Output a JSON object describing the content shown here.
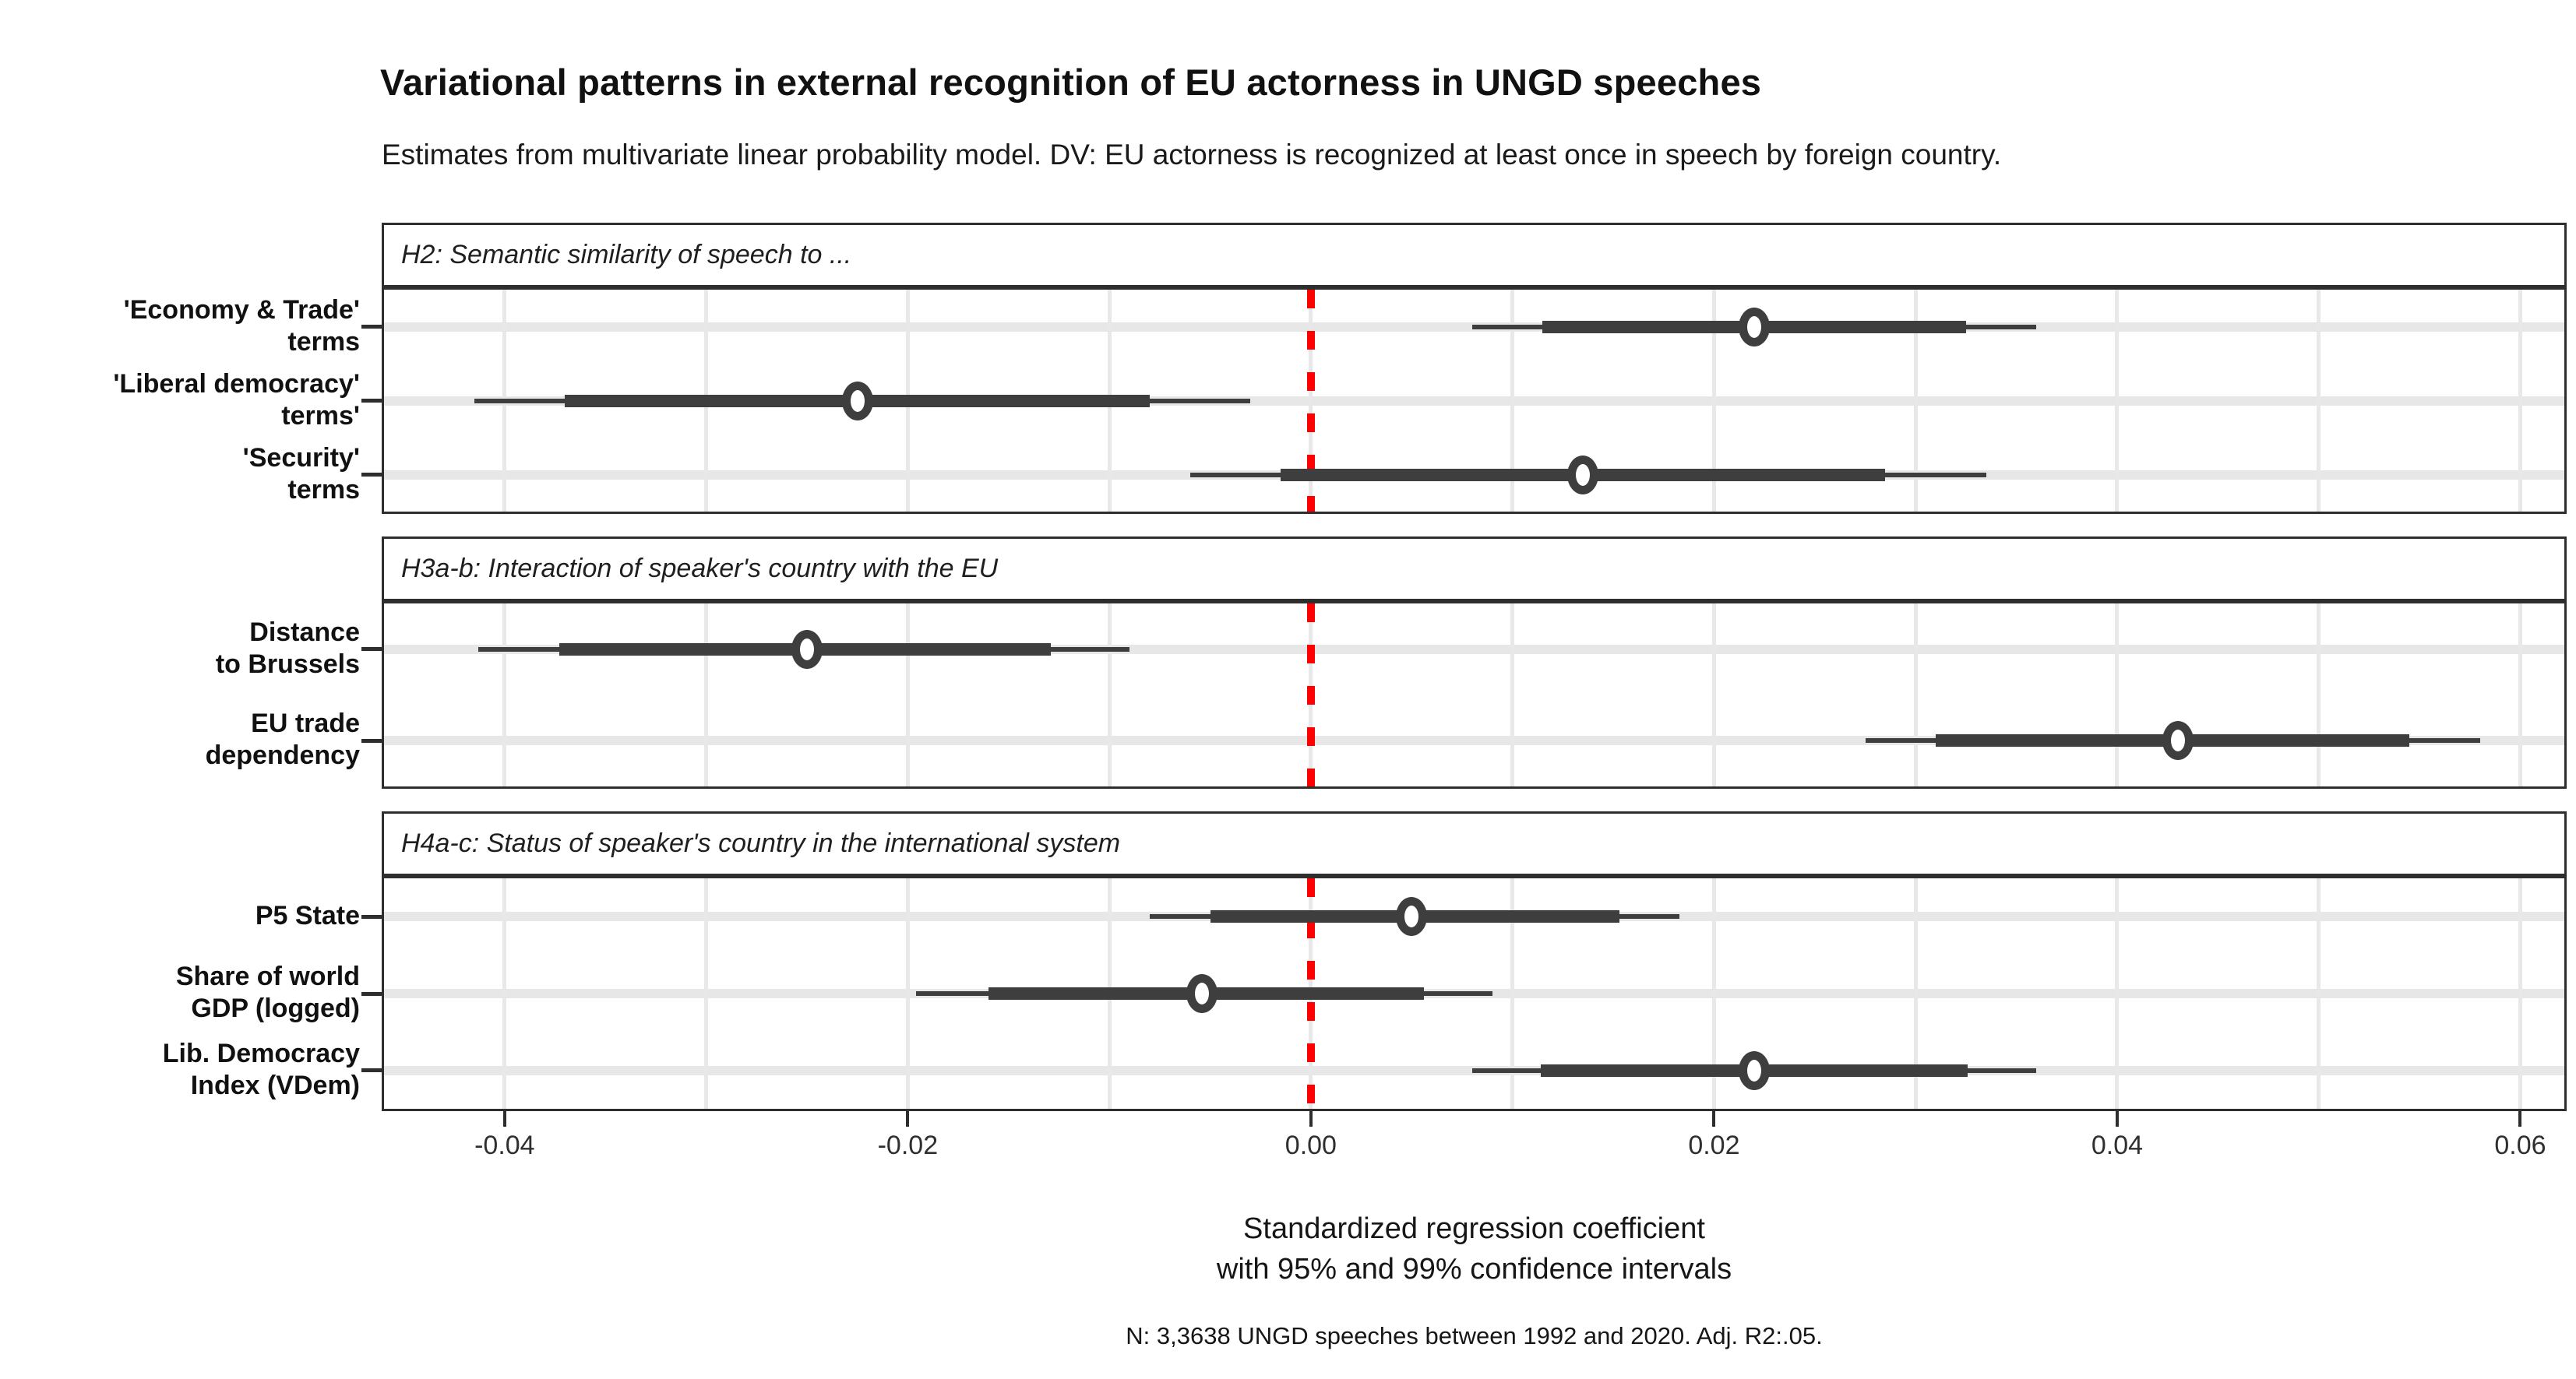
{
  "header": {
    "title": "Variational patterns in external recognition of EU actorness in UNGD speeches",
    "subtitle": "Estimates from multivariate linear probability model. DV: EU actorness is recognized at least once in speech by foreign country."
  },
  "axis": {
    "xlabel": "Standardized regression coefficient\nwith 95% and 99% confidence intervals"
  },
  "caption": "N: 3,3638 UNGD speeches between 1992 and 2020. Adj. R2:.05.",
  "colors": {
    "estimate": "#3e3e3e",
    "zero_line": "#ff0000",
    "gridline": "#e8e8e8",
    "row_band": "#e7e7e7",
    "panel_border": "#2e2e2e",
    "background": "#ffffff"
  },
  "chart_data": {
    "type": "scatter",
    "subtype": "coefficient-dot-whisker-plot",
    "title": "Variational patterns in external recognition of EU actorness in UNGD speeches",
    "xlabel": "Standardized regression coefficient with 95% and 99% confidence intervals",
    "ylabel": "",
    "x_domain": [
      -0.0461,
      0.0623
    ],
    "x_ticks": [
      -0.04,
      -0.02,
      0.0,
      0.02,
      0.04,
      0.06
    ],
    "x_tick_labels": [
      "-0.04",
      "-0.02",
      "0.00",
      "0.02",
      "0.04",
      "0.06"
    ],
    "gridline_step": 0.01,
    "grid": true,
    "legend": false,
    "zero_reference_line": 0,
    "panels": [
      {
        "header": "H2: Semantic similarity of speech to ...",
        "rows": [
          {
            "label_lines": [
              "'Economy & Trade'",
              "terms"
            ],
            "estimate": 0.022,
            "ci95": [
              0.0115,
              0.0325
            ],
            "ci99": [
              0.008,
              0.036
            ]
          },
          {
            "label_lines": [
              "'Liberal democracy'",
              "terms'"
            ],
            "estimate": -0.0225,
            "ci95": [
              -0.037,
              -0.008
            ],
            "ci99": [
              -0.0415,
              -0.003
            ]
          },
          {
            "label_lines": [
              "'Security'",
              "terms"
            ],
            "estimate": 0.0135,
            "ci95": [
              -0.0015,
              0.0285
            ],
            "ci99": [
              -0.006,
              0.0335
            ]
          }
        ]
      },
      {
        "header": "H3a-b: Interaction of speaker's country with the EU",
        "rows": [
          {
            "label_lines": [
              "Distance",
              "to Brussels"
            ],
            "estimate": -0.025,
            "ci95": [
              -0.0373,
              -0.0129
            ],
            "ci99": [
              -0.0413,
              -0.009
            ]
          },
          {
            "label_lines": [
              "EU trade",
              "dependency"
            ],
            "estimate": 0.043,
            "ci95": [
              0.031,
              0.0545
            ],
            "ci99": [
              0.0275,
              0.058
            ]
          }
        ]
      },
      {
        "header": "H4a-c: Status of speaker's country in the international system",
        "rows": [
          {
            "label_lines": [
              "P5 State"
            ],
            "estimate": 0.005,
            "ci95": [
              -0.005,
              0.0153
            ],
            "ci99": [
              -0.008,
              0.0183
            ]
          },
          {
            "label_lines": [
              "Share of world",
              "GDP (logged)"
            ],
            "estimate": -0.0054,
            "ci95": [
              -0.016,
              0.0056
            ],
            "ci99": [
              -0.0196,
              0.009
            ]
          },
          {
            "label_lines": [
              "Lib. Democracy",
              "Index (VDem)"
            ],
            "estimate": 0.022,
            "ci95": [
              0.0114,
              0.0326
            ],
            "ci99": [
              0.008,
              0.036
            ]
          }
        ]
      }
    ]
  }
}
